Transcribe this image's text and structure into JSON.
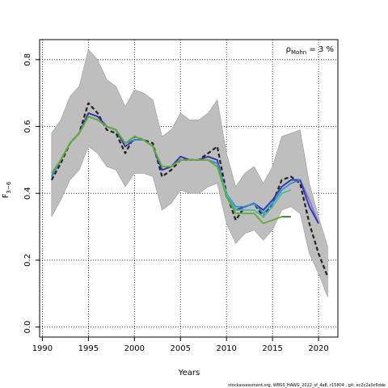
{
  "chart_data": {
    "type": "line",
    "title": "",
    "xlabel": "Years",
    "ylabel": {
      "base": "F",
      "sub": "3−6"
    },
    "xlim": [
      1989.7,
      2022.1
    ],
    "ylim": [
      -0.03,
      0.86
    ],
    "x_ticks": [
      1990,
      1995,
      2000,
      2005,
      2010,
      2015,
      2020
    ],
    "y_ticks": [
      0.0,
      0.2,
      0.4,
      0.6,
      0.8
    ],
    "y_tick_labels": [
      "0.0",
      "0.2",
      "0.4",
      "0.6",
      "0.8"
    ],
    "grid": true,
    "annotation": {
      "rho": "ρ",
      "sub": "Mohn",
      "value": " = 3 %"
    },
    "footer": "stockassessment.org, WBSS_HAWG_2022_sf_4aE, r15804 , git: ec2c2a0c6dde",
    "confidence_band": {
      "x": [
        1991,
        1992,
        1993,
        1994,
        1995,
        1996,
        1997,
        1998,
        1999,
        2000,
        2001,
        2002,
        2003,
        2004,
        2005,
        2006,
        2007,
        2008,
        2009,
        2010,
        2011,
        2012,
        2013,
        2014,
        2015,
        2016,
        2017,
        2018,
        2019,
        2020,
        2021
      ],
      "upper": [
        0.58,
        0.62,
        0.69,
        0.72,
        0.83,
        0.8,
        0.74,
        0.72,
        0.66,
        0.71,
        0.7,
        0.68,
        0.57,
        0.59,
        0.64,
        0.62,
        0.62,
        0.64,
        0.68,
        0.52,
        0.42,
        0.46,
        0.48,
        0.43,
        0.48,
        0.57,
        0.58,
        0.59,
        0.43,
        0.33,
        0.24
      ],
      "lower": [
        0.33,
        0.38,
        0.44,
        0.47,
        0.54,
        0.52,
        0.48,
        0.47,
        0.42,
        0.46,
        0.46,
        0.45,
        0.35,
        0.37,
        0.41,
        0.4,
        0.4,
        0.42,
        0.43,
        0.31,
        0.25,
        0.28,
        0.29,
        0.26,
        0.29,
        0.35,
        0.36,
        0.34,
        0.22,
        0.16,
        0.09
      ]
    },
    "series": [
      {
        "style": "dashed",
        "color": "#222222",
        "x": [
          1991,
          1992,
          1993,
          1994,
          1995,
          1996,
          1997,
          1998,
          1999,
          2000,
          2001,
          2002,
          2003,
          2004,
          2005,
          2006,
          2007,
          2008,
          2009,
          2010,
          2011,
          2012,
          2013,
          2014,
          2015,
          2016,
          2017,
          2018,
          2019,
          2020,
          2021
        ],
        "values": [
          0.44,
          0.49,
          0.55,
          0.58,
          0.67,
          0.64,
          0.59,
          0.58,
          0.52,
          0.57,
          0.56,
          0.55,
          0.45,
          0.47,
          0.5,
          0.5,
          0.5,
          0.52,
          0.54,
          0.4,
          0.32,
          0.36,
          0.37,
          0.33,
          0.37,
          0.44,
          0.45,
          0.43,
          0.31,
          0.22,
          0.15
        ]
      },
      {
        "style": "solid",
        "color": "#7777dd",
        "x": [
          1991,
          1992,
          1993,
          1994,
          1995,
          1996,
          1997,
          1998,
          1999,
          2000,
          2001,
          2002,
          2003,
          2004,
          2005,
          2006,
          2007,
          2008,
          2009,
          2010,
          2011,
          2012,
          2013,
          2014,
          2015,
          2016,
          2017,
          2018,
          2019,
          2020
        ],
        "values": [
          0.45,
          0.5,
          0.55,
          0.58,
          0.64,
          0.63,
          0.6,
          0.59,
          0.54,
          0.56,
          0.56,
          0.54,
          0.47,
          0.48,
          0.51,
          0.5,
          0.5,
          0.51,
          0.5,
          0.39,
          0.35,
          0.36,
          0.37,
          0.35,
          0.38,
          0.42,
          0.44,
          0.44,
          0.38,
          0.31
        ]
      },
      {
        "style": "solid",
        "color": "#3333aa",
        "x": [
          1991,
          1992,
          1993,
          1994,
          1995,
          1996,
          1997,
          1998,
          1999,
          2000,
          2001,
          2002,
          2003,
          2004,
          2005,
          2006,
          2007,
          2008,
          2009,
          2010,
          2011,
          2012,
          2013,
          2014,
          2015,
          2016,
          2017,
          2018,
          2019,
          2020
        ],
        "values": [
          0.45,
          0.5,
          0.55,
          0.58,
          0.64,
          0.63,
          0.6,
          0.59,
          0.54,
          0.56,
          0.56,
          0.54,
          0.47,
          0.48,
          0.51,
          0.5,
          0.5,
          0.51,
          0.5,
          0.39,
          0.35,
          0.36,
          0.37,
          0.35,
          0.38,
          0.42,
          0.44,
          0.44,
          0.36,
          0.31
        ]
      },
      {
        "style": "solid",
        "color": "#2f8fcf",
        "x": [
          1991,
          1992,
          1993,
          1994,
          1995,
          1996,
          1997,
          1998,
          1999,
          2000,
          2001,
          2002,
          2003,
          2004,
          2005,
          2006,
          2007,
          2008,
          2009,
          2010,
          2011,
          2012,
          2013,
          2014,
          2015,
          2016,
          2017,
          2018
        ],
        "values": [
          0.45,
          0.5,
          0.55,
          0.58,
          0.63,
          0.62,
          0.6,
          0.59,
          0.55,
          0.56,
          0.56,
          0.54,
          0.48,
          0.48,
          0.5,
          0.5,
          0.5,
          0.5,
          0.49,
          0.4,
          0.36,
          0.36,
          0.37,
          0.34,
          0.37,
          0.41,
          0.43,
          0.44
        ]
      },
      {
        "style": "solid",
        "color": "#44bbaa",
        "x": [
          1991,
          1992,
          1993,
          1994,
          1995,
          1996,
          1997,
          1998,
          1999,
          2000,
          2001,
          2002,
          2003,
          2004,
          2005,
          2006,
          2007,
          2008,
          2009,
          2010,
          2011,
          2012,
          2013,
          2014,
          2015,
          2016,
          2017
        ],
        "values": [
          0.46,
          0.5,
          0.55,
          0.58,
          0.63,
          0.62,
          0.6,
          0.59,
          0.55,
          0.57,
          0.56,
          0.54,
          0.48,
          0.48,
          0.5,
          0.5,
          0.5,
          0.5,
          0.48,
          0.4,
          0.35,
          0.35,
          0.35,
          0.33,
          0.36,
          0.4,
          0.41
        ]
      },
      {
        "style": "solid",
        "color": "#66aa33",
        "x": [
          1991,
          1992,
          1993,
          1994,
          1995,
          1996,
          1997,
          1998,
          1999,
          2000,
          2001,
          2002,
          2003,
          2004,
          2005,
          2006,
          2007,
          2008,
          2009,
          2010,
          2011,
          2012,
          2013,
          2014,
          2015,
          2016
        ],
        "values": [
          0.46,
          0.5,
          0.55,
          0.58,
          0.63,
          0.62,
          0.6,
          0.59,
          0.55,
          0.57,
          0.56,
          0.54,
          0.48,
          0.48,
          0.5,
          0.5,
          0.5,
          0.5,
          0.48,
          0.39,
          0.34,
          0.34,
          0.34,
          0.31,
          0.32,
          0.33
        ]
      },
      {
        "style": "solid",
        "color": "#1f7a1f",
        "x": [
          2016,
          2017
        ],
        "values": [
          0.33,
          0.33
        ]
      }
    ]
  }
}
